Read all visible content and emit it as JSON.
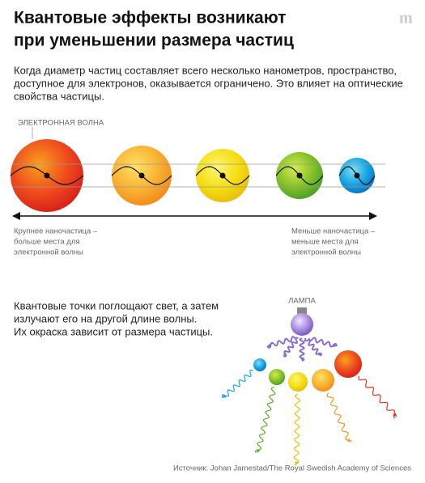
{
  "header": {
    "title": [
      "Квантовые эффекты возникают",
      "при уменьшении размера частиц"
    ],
    "description": [
      "Когда диаметр частиц составляет всего несколько нанометров, пространство,",
      "доступное для электронов, оказывается ограничено. Это влияет на оптические",
      "свойства частицы."
    ]
  },
  "wave_label": "ЭЛЕКТРОННАЯ ВОЛНА",
  "left_label": [
    "Крупнее наночастица –",
    "больше места для",
    "электронной волны"
  ],
  "right_label": [
    "Меньше наночастица –",
    "меньше места для",
    "электронной волны"
  ],
  "bottom_text": [
    "Квантовые точки поглощают свет, а затем",
    "излучают его на другой длине волны.",
    "Их окраска зависит от размера частицы."
  ],
  "lamp_label": "ЛАМПА",
  "source": "Источник: Johan Jarnestad/The Royal Swedish Academy of Sciences"
}
